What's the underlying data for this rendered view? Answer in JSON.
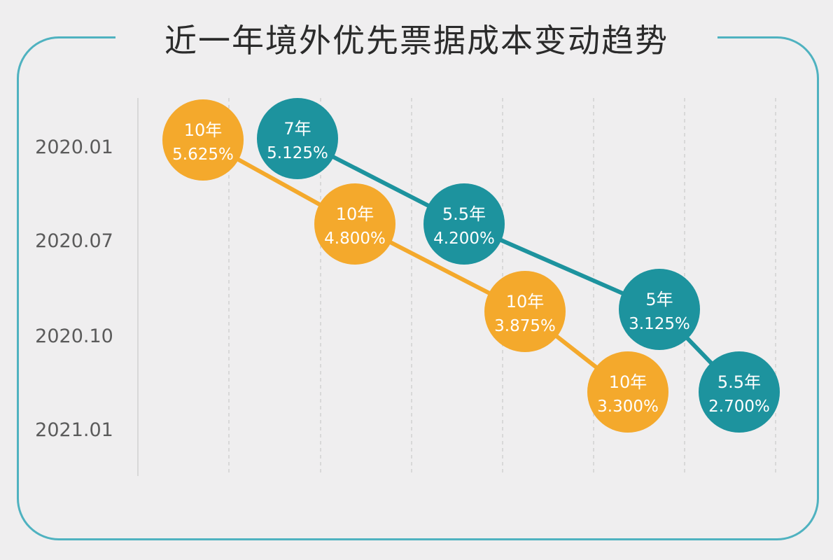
{
  "chart_data": {
    "type": "scatter",
    "title": "近一年境外优先票据成本变动趋势",
    "xlabel": "",
    "ylabel": "",
    "y_categories": [
      "2020.01",
      "2020.07",
      "2020.10",
      "2021.01"
    ],
    "grid": "vertical-dashed",
    "series": [
      {
        "color": "#f4a92c",
        "points": [
          {
            "tenor": "10年",
            "rate": "5.625%",
            "value": 5.625
          },
          {
            "tenor": "10年",
            "rate": "4.800%",
            "value": 4.8
          },
          {
            "tenor": "10年",
            "rate": "3.875%",
            "value": 3.875
          },
          {
            "tenor": "10年",
            "rate": "3.300%",
            "value": 3.3
          }
        ]
      },
      {
        "color": "#1d939e",
        "points": [
          {
            "tenor": "7年",
            "rate": "5.125%",
            "value": 5.125
          },
          {
            "tenor": "5.5年",
            "rate": "4.200%",
            "value": 4.2
          },
          {
            "tenor": "5年",
            "rate": "3.125%",
            "value": 3.125
          },
          {
            "tenor": "5.5年",
            "rate": "2.700%",
            "value": 2.7
          }
        ]
      }
    ]
  },
  "colors": {
    "frame": "#4fb2c0",
    "background": "#efeeef",
    "grid": "#c9c9c9",
    "orange": "#f4a92c",
    "teal": "#1d939e"
  }
}
